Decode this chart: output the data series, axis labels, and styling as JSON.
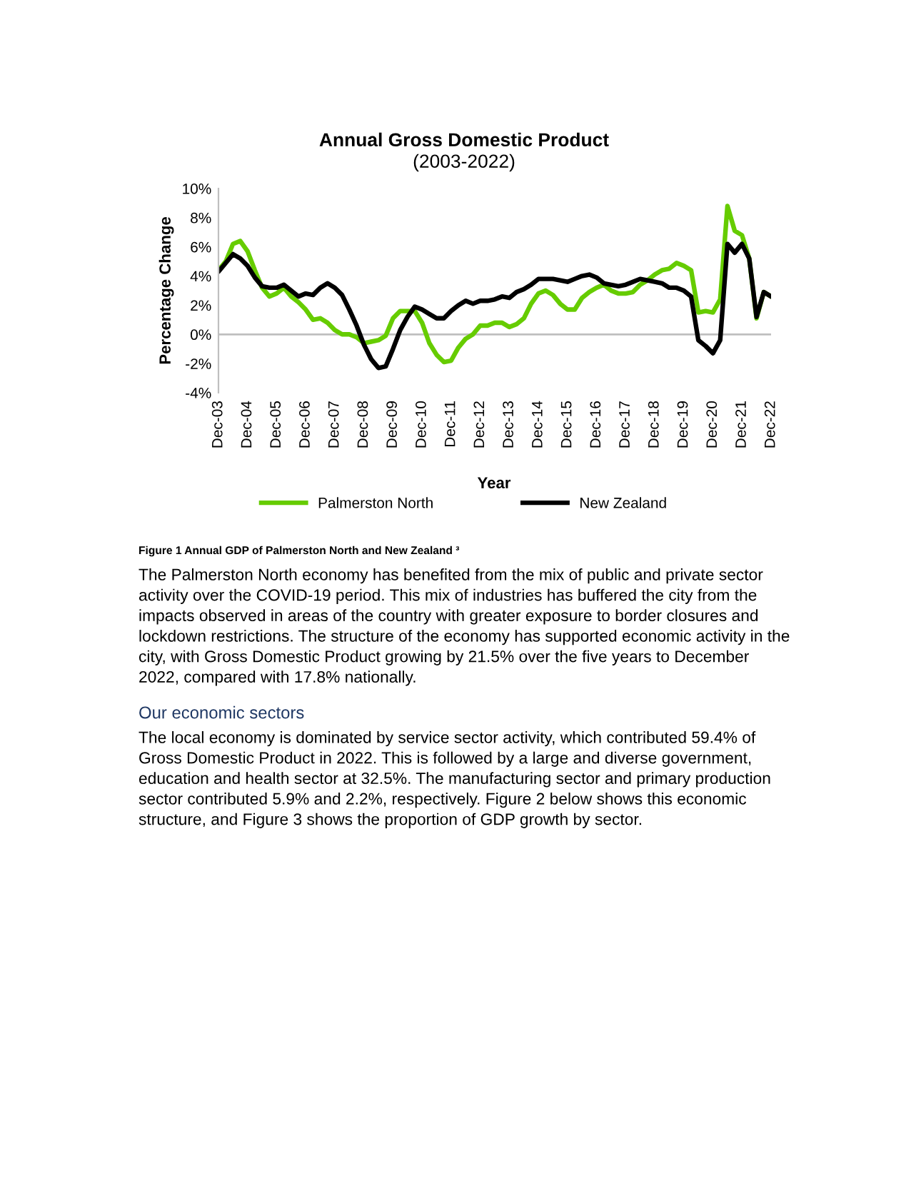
{
  "chart_data": {
    "type": "line",
    "title": "Annual Gross Domestic Product",
    "subtitle": "(2003-2022)",
    "xlabel": "Year",
    "ylabel": "Percentage Change",
    "categories": [
      "Dec-03",
      null,
      null,
      null,
      "Dec-04",
      null,
      null,
      null,
      "Dec-05",
      null,
      null,
      null,
      "Dec-06",
      null,
      null,
      null,
      "Dec-07",
      null,
      null,
      null,
      "Dec-08",
      null,
      null,
      null,
      "Dec-09",
      null,
      null,
      null,
      "Dec-10",
      null,
      null,
      null,
      "Dec-11",
      null,
      null,
      null,
      "Dec-12",
      null,
      null,
      null,
      "Dec-13",
      null,
      null,
      null,
      "Dec-14",
      null,
      null,
      null,
      "Dec-15",
      null,
      null,
      null,
      "Dec-16",
      null,
      null,
      null,
      "Dec-17",
      null,
      null,
      null,
      "Dec-18",
      null,
      null,
      null,
      "Dec-19",
      null,
      null,
      null,
      "Dec-20",
      null,
      null,
      null,
      "Dec-21",
      null,
      null,
      null,
      "Dec-22"
    ],
    "series": [
      {
        "name": "Palmerston North",
        "color": "#66cc00",
        "values": [
          4.4,
          5.0,
          6.2,
          6.4,
          5.7,
          4.4,
          3.2,
          2.6,
          2.8,
          3.2,
          2.6,
          2.2,
          1.7,
          1.0,
          1.1,
          0.8,
          0.3,
          0.0,
          0.0,
          -0.2,
          -0.6,
          -0.5,
          -0.4,
          -0.1,
          1.1,
          1.6,
          1.6,
          1.6,
          0.8,
          -0.6,
          -1.4,
          -1.9,
          -1.8,
          -0.9,
          -0.3,
          0.0,
          0.6,
          0.6,
          0.8,
          0.8,
          0.5,
          0.7,
          1.1,
          2.1,
          2.8,
          3.0,
          2.7,
          2.1,
          1.7,
          1.7,
          2.5,
          2.9,
          3.2,
          3.4,
          3.0,
          2.8,
          2.8,
          2.9,
          3.4,
          3.7,
          4.1,
          4.4,
          4.5,
          4.9,
          4.7,
          4.4,
          1.5,
          1.6,
          1.5,
          2.4,
          8.8,
          7.1,
          6.8,
          5.2,
          1.1,
          2.9,
          2.6
        ]
      },
      {
        "name": "New Zealand",
        "color": "#000000",
        "values": [
          4.3,
          4.9,
          5.5,
          5.2,
          4.7,
          3.9,
          3.3,
          3.2,
          3.2,
          3.4,
          3.0,
          2.6,
          2.8,
          2.7,
          3.2,
          3.5,
          3.2,
          2.7,
          1.7,
          0.6,
          -0.7,
          -1.7,
          -2.3,
          -2.2,
          -1.0,
          0.3,
          1.2,
          1.9,
          1.7,
          1.4,
          1.1,
          1.1,
          1.6,
          2.0,
          2.3,
          2.1,
          2.3,
          2.3,
          2.4,
          2.6,
          2.5,
          2.9,
          3.1,
          3.4,
          3.8,
          3.8,
          3.8,
          3.7,
          3.6,
          3.8,
          4.0,
          4.1,
          3.9,
          3.5,
          3.4,
          3.3,
          3.4,
          3.6,
          3.8,
          3.7,
          3.6,
          3.5,
          3.2,
          3.2,
          3.0,
          2.6,
          -0.4,
          -0.8,
          -1.3,
          -0.4,
          6.2,
          5.6,
          6.2,
          5.2,
          1.2,
          2.9,
          2.6
        ]
      }
    ],
    "ylim": [
      -4,
      10
    ],
    "yticks": [
      {
        "value": -4,
        "label": "-4%"
      },
      {
        "value": -2,
        "label": "-2%"
      },
      {
        "value": 0,
        "label": "0%"
      },
      {
        "value": 2,
        "label": "2%"
      },
      {
        "value": 4,
        "label": "4%"
      },
      {
        "value": 6,
        "label": "6%"
      },
      {
        "value": 8,
        "label": "8%"
      },
      {
        "value": 10,
        "label": "10%"
      }
    ],
    "ref_lines": [
      {
        "axis": "y",
        "value": 0,
        "color": "#bfbfbf"
      }
    ],
    "grid": false,
    "legend": "bottom",
    "marker": "none",
    "line_style": "solid",
    "annotations": [
      "Figure 1 Annual GDP of Palmerston North and New Zealand ³",
      "The Palmerston North economy has benefited from the mix of public and private sector activity over the COVID-19 period. This mix of industries has buffered the city from the impacts observed in areas of the country with greater exposure to border closures and lockdown restrictions. The structure of the economy has supported economic activity in the city, with Gross Domestic Product growing by 21.5% over the five years to December 2022, compared with 17.8% nationally.",
      "Our economic sectors",
      "The local economy is dominated by service sector activity, which contributed 59.4% of Gross Domestic Product in 2022. This is followed by a large and diverse government, education and health sector at 32.5%. The manufacturing sector and primary production sector contributed 5.9% and 2.2%, respectively. Figure 2 below shows this economic structure, and Figure 3 shows the proportion of GDP growth by sector."
    ]
  }
}
